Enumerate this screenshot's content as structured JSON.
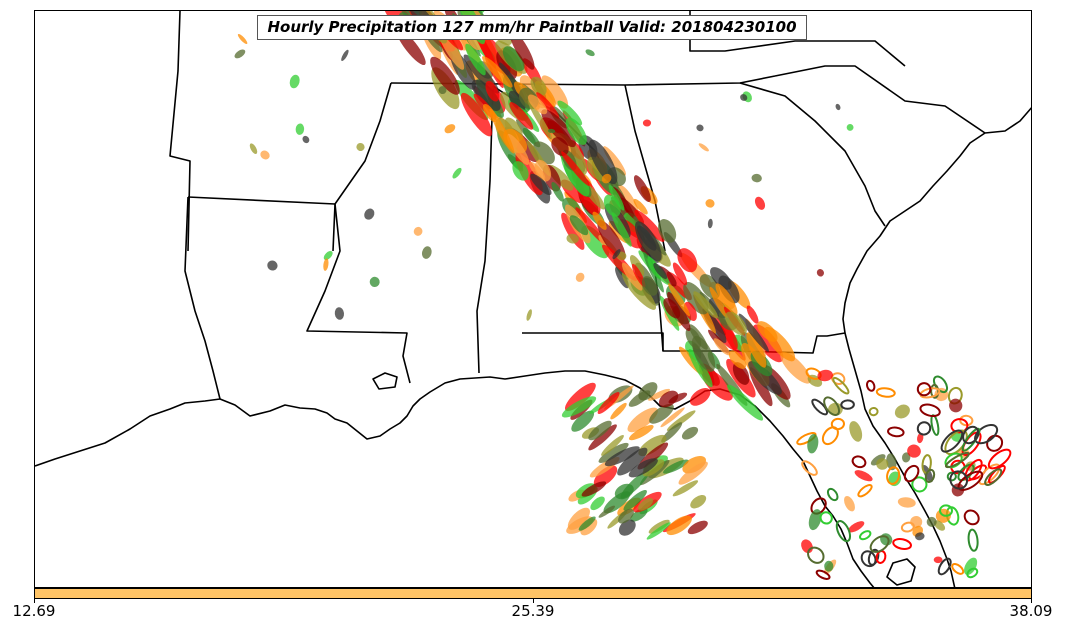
{
  "map": {
    "title": "Hourly Precipitation 127 mm/hr Paintball Valid: 201804230100",
    "region": "southeastern-united-states",
    "line_color": "#000000",
    "paintball_colors": [
      "#ff0000",
      "#ff8c00",
      "#2e8b2e",
      "#32cd32",
      "#8b0000",
      "#9a9a2a",
      "#333333",
      "#ffa040",
      "#556b2f"
    ]
  },
  "colorbar": {
    "color": "#ffc466",
    "ticks": [
      {
        "label": "12.69",
        "frac": 0.0
      },
      {
        "label": "25.39",
        "frac": 0.5
      },
      {
        "label": "38.09",
        "frac": 1.0
      }
    ]
  }
}
